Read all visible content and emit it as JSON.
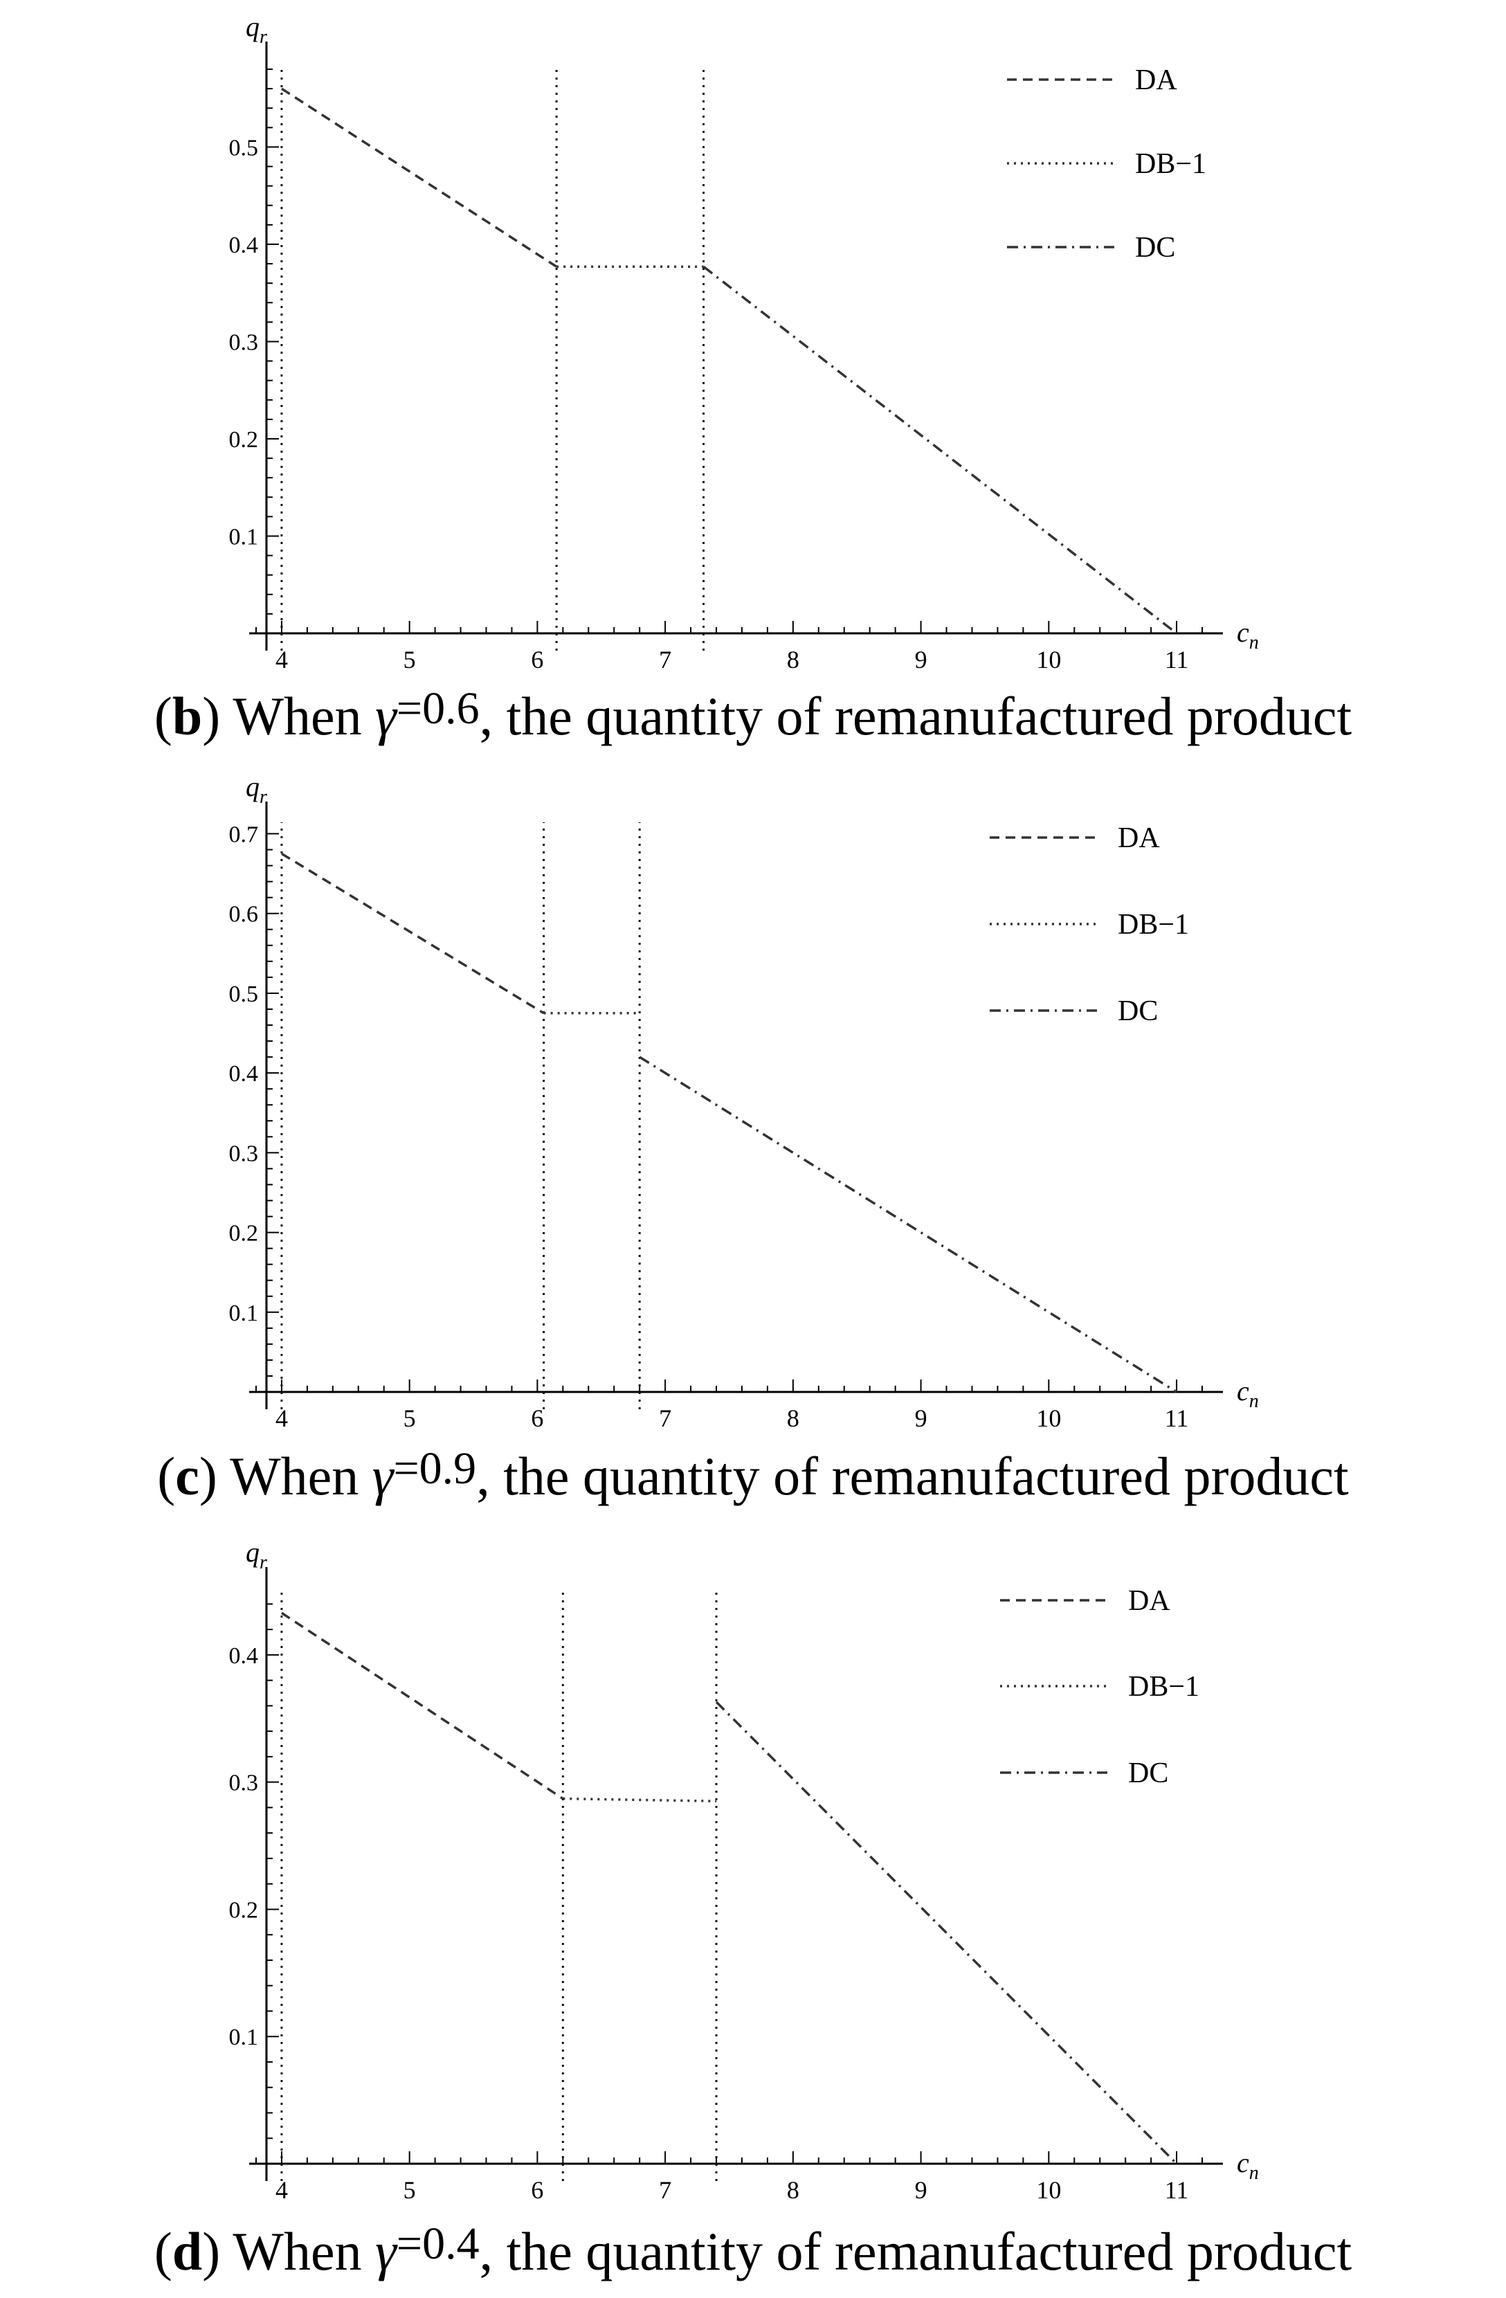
{
  "chart_data": [
    {
      "type": "line",
      "caption": {
        "label": "b",
        "prefix": "When ",
        "gamma_symbol": "γ",
        "gamma_value": "=0.6",
        "suffix": ", the quantity of remanufactured product"
      },
      "xlabel": "c_n",
      "xlabel_main": "c",
      "xlabel_sub": "n",
      "ylabel": "q_r",
      "ylabel_main": "q",
      "ylabel_sub": "r",
      "xlim": [
        3.8,
        11.2
      ],
      "ylim": [
        0,
        0.58
      ],
      "xticks": [
        4,
        5,
        6,
        7,
        8,
        9,
        10,
        11
      ],
      "yticks": [
        0.1,
        0.2,
        0.3,
        0.4,
        0.5
      ],
      "vlines": [
        4.0,
        6.15,
        7.3
      ],
      "grid": false,
      "legend_position": "top-right",
      "series": [
        {
          "name": "DA",
          "style": "dashed",
          "x": [
            4.0,
            6.15
          ],
          "y": [
            0.56,
            0.377
          ]
        },
        {
          "name": "DB−1",
          "style": "dotted",
          "x": [
            6.15,
            7.3
          ],
          "y": [
            0.377,
            0.377
          ]
        },
        {
          "name": "DC",
          "style": "dashdot",
          "x": [
            7.3,
            11.0
          ],
          "y": [
            0.377,
            0.0
          ]
        }
      ]
    },
    {
      "type": "line",
      "caption": {
        "label": "c",
        "prefix": "When ",
        "gamma_symbol": "γ",
        "gamma_value": "=0.9",
        "suffix": ", the quantity of remanufactured product"
      },
      "xlabel": "c_n",
      "xlabel_main": "c",
      "xlabel_sub": "n",
      "ylabel": "q_r",
      "ylabel_main": "q",
      "ylabel_sub": "r",
      "xlim": [
        3.8,
        11.2
      ],
      "ylim": [
        0,
        0.71
      ],
      "xticks": [
        4,
        5,
        6,
        7,
        8,
        9,
        10,
        11
      ],
      "yticks": [
        0.1,
        0.2,
        0.3,
        0.4,
        0.5,
        0.6,
        0.7
      ],
      "vlines": [
        4.0,
        6.05,
        6.8
      ],
      "grid": false,
      "legend_position": "top-right",
      "series": [
        {
          "name": "DA",
          "style": "dashed",
          "x": [
            4.0,
            6.05
          ],
          "y": [
            0.675,
            0.475
          ]
        },
        {
          "name": "DB−1",
          "style": "dotted",
          "x": [
            6.05,
            6.8
          ],
          "y": [
            0.475,
            0.475
          ]
        },
        {
          "name": "DC",
          "style": "dashdot",
          "x": [
            6.8,
            11.0
          ],
          "y": [
            0.42,
            0.0
          ]
        }
      ]
    },
    {
      "type": "line",
      "caption": {
        "label": "d",
        "prefix": "When ",
        "gamma_symbol": "γ",
        "gamma_value": "=0.4",
        "suffix": ", the quantity of remanufactured product"
      },
      "xlabel": "c_n",
      "xlabel_main": "c",
      "xlabel_sub": "n",
      "ylabel": "q_r",
      "ylabel_main": "q",
      "ylabel_sub": "r",
      "xlim": [
        3.8,
        11.2
      ],
      "ylim": [
        0,
        0.45
      ],
      "xticks": [
        4,
        5,
        6,
        7,
        8,
        9,
        10,
        11
      ],
      "yticks": [
        0.1,
        0.2,
        0.3,
        0.4
      ],
      "vlines": [
        4.0,
        6.2,
        7.4
      ],
      "grid": false,
      "legend_position": "top-right",
      "series": [
        {
          "name": "DA",
          "style": "dashed",
          "x": [
            4.0,
            6.2
          ],
          "y": [
            0.433,
            0.287
          ]
        },
        {
          "name": "DB−1",
          "style": "dotted",
          "x": [
            6.2,
            7.4
          ],
          "y": [
            0.287,
            0.285
          ]
        },
        {
          "name": "DC",
          "style": "dashdot",
          "x": [
            7.4,
            11.0
          ],
          "y": [
            0.363,
            0.0
          ]
        }
      ]
    }
  ]
}
